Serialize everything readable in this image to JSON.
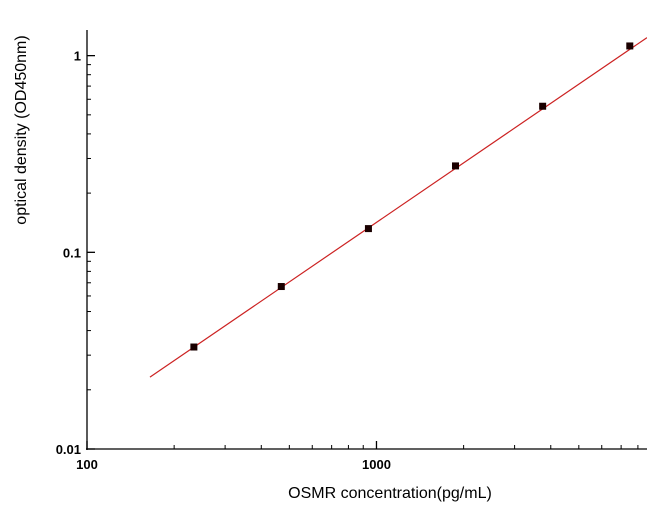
{
  "chart_data": {
    "type": "scatter",
    "xscale": "log",
    "yscale": "log",
    "xlabel": "OSMR concentration(pg/mL)",
    "ylabel": "optical density (OD450nm)",
    "xlim": [
      100,
      8600
    ],
    "ylim": [
      0.01,
      1.35
    ],
    "x_ticks": [
      {
        "value": 100,
        "label": "100"
      },
      {
        "value": 1000,
        "label": "1000"
      }
    ],
    "y_ticks": [
      {
        "value": 0.01,
        "label": "0.01"
      },
      {
        "value": 0.1,
        "label": "0.1"
      },
      {
        "value": 1,
        "label": "1"
      }
    ],
    "points": [
      {
        "x": 234,
        "y": 0.033
      },
      {
        "x": 469,
        "y": 0.067
      },
      {
        "x": 938,
        "y": 0.132
      },
      {
        "x": 1875,
        "y": 0.275
      },
      {
        "x": 3750,
        "y": 0.553
      },
      {
        "x": 7500,
        "y": 1.12
      }
    ],
    "fit_line": {
      "x": [
        165,
        8600
      ],
      "y": [
        0.0232,
        1.235
      ]
    },
    "grid": false,
    "colors": {
      "points": "#1a0000",
      "fit_line": "#cc2222",
      "axes": "#000000"
    }
  }
}
